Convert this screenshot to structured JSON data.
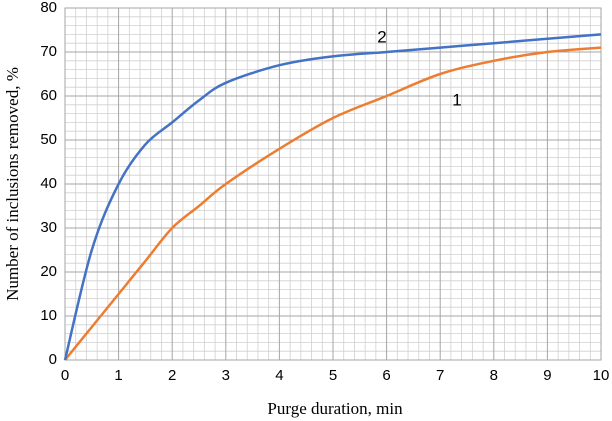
{
  "chart_data": {
    "type": "line",
    "x_label": "Purge duration, min",
    "y_label": "Number of inclusions removed, %",
    "x": [
      0,
      0.5,
      1,
      1.5,
      2,
      2.5,
      3,
      4,
      5,
      6,
      7,
      8,
      9,
      10
    ],
    "series": [
      {
        "name": "1",
        "color": "#ed7d31",
        "values": [
          0,
          7.5,
          15,
          22.5,
          30,
          35,
          40,
          48,
          55,
          60,
          65,
          68,
          70,
          71
        ]
      },
      {
        "name": "2",
        "color": "#4472c4",
        "values": [
          0,
          25,
          40,
          49,
          54,
          59,
          63,
          67,
          69,
          70,
          71,
          72,
          73,
          74
        ]
      }
    ],
    "xlim": [
      0,
      10
    ],
    "xticks": [
      0,
      1,
      2,
      3,
      4,
      5,
      6,
      7,
      8,
      9,
      10
    ],
    "ylim": [
      0,
      80
    ],
    "yticks": [
      0,
      10,
      20,
      30,
      40,
      50,
      60,
      70,
      80
    ],
    "grid": true,
    "minor_divisions": 5
  }
}
